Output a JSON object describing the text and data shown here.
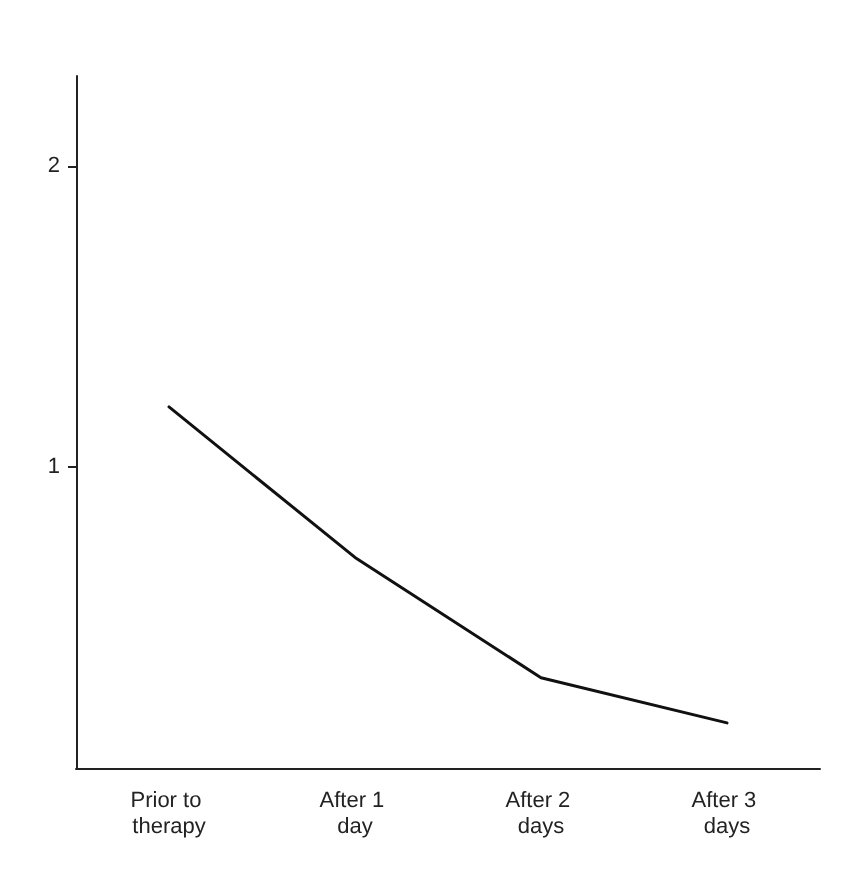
{
  "chart_data": {
    "type": "line",
    "categories": [
      "Prior to therapy",
      "After 1 day",
      "After 2 days",
      "After 3 days"
    ],
    "series": [
      {
        "color": "#111111",
        "values": [
          1.2,
          0.7,
          0.3,
          0.15
        ]
      }
    ],
    "ylim": [
      0,
      2.3
    ],
    "yticks": [
      1,
      2
    ],
    "grid": false,
    "marker": "none",
    "line_style": "solid"
  }
}
